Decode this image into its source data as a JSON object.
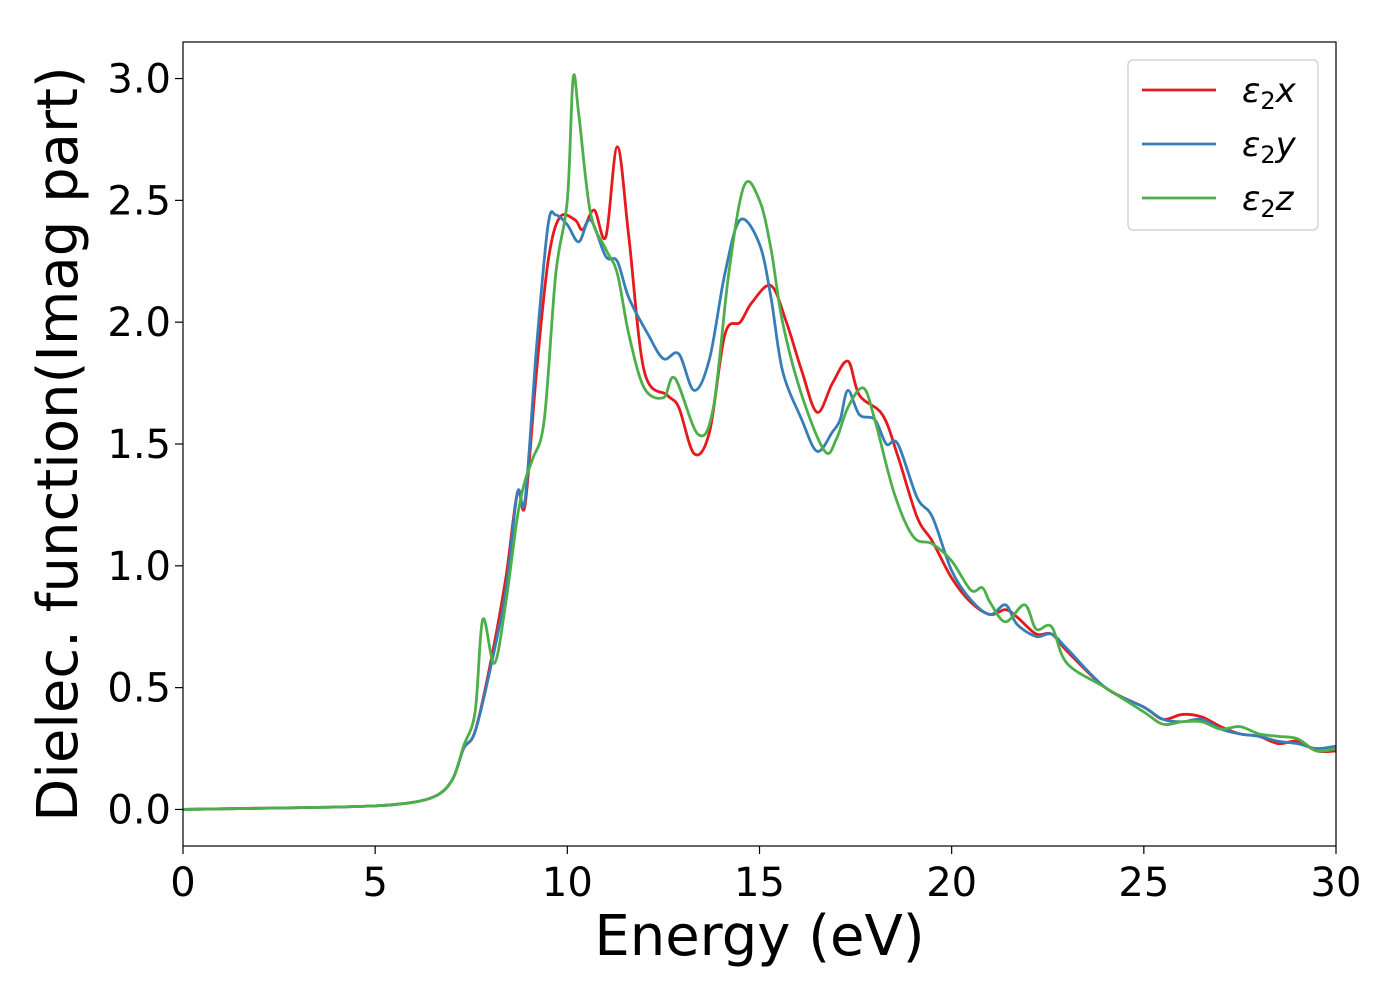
{
  "chart_data": {
    "type": "line",
    "xlabel": "Energy (eV)",
    "ylabel": "Dielec. function(Imag part)",
    "xlim": [
      0,
      30
    ],
    "ylim": [
      -0.15,
      3.15
    ],
    "xticks": [
      0,
      5,
      10,
      15,
      20,
      25,
      30
    ],
    "xtick_labels": [
      "0",
      "5",
      "10",
      "15",
      "20",
      "25",
      "30"
    ],
    "yticks": [
      0.0,
      0.5,
      1.0,
      1.5,
      2.0,
      2.5,
      3.0
    ],
    "ytick_labels": [
      "0.0",
      "0.5",
      "1.0",
      "1.5",
      "2.0",
      "2.5",
      "3.0"
    ],
    "grid": false,
    "legend_position": "top-right",
    "series": [
      {
        "name": "ε2x",
        "legend_base": "ε",
        "legend_sub": "2",
        "legend_suffix": "x",
        "color": "#e41a1c",
        "points": [
          [
            0,
            0
          ],
          [
            2,
            0.005
          ],
          [
            4,
            0.01
          ],
          [
            5.5,
            0.02
          ],
          [
            6.5,
            0.05
          ],
          [
            7,
            0.12
          ],
          [
            7.3,
            0.25
          ],
          [
            7.6,
            0.32
          ],
          [
            8,
            0.6
          ],
          [
            8.4,
            0.95
          ],
          [
            8.7,
            1.3
          ],
          [
            8.9,
            1.25
          ],
          [
            9.2,
            1.8
          ],
          [
            9.5,
            2.25
          ],
          [
            9.8,
            2.43
          ],
          [
            10.2,
            2.42
          ],
          [
            10.4,
            2.38
          ],
          [
            10.7,
            2.46
          ],
          [
            11,
            2.35
          ],
          [
            11.3,
            2.72
          ],
          [
            11.6,
            2.35
          ],
          [
            12,
            1.8
          ],
          [
            12.6,
            1.7
          ],
          [
            12.9,
            1.65
          ],
          [
            13.3,
            1.46
          ],
          [
            13.7,
            1.55
          ],
          [
            14.1,
            1.95
          ],
          [
            14.5,
            2.0
          ],
          [
            14.8,
            2.08
          ],
          [
            15.3,
            2.15
          ],
          [
            15.7,
            2.0
          ],
          [
            16.1,
            1.8
          ],
          [
            16.5,
            1.63
          ],
          [
            16.9,
            1.75
          ],
          [
            17.3,
            1.84
          ],
          [
            17.6,
            1.7
          ],
          [
            18.2,
            1.62
          ],
          [
            18.6,
            1.45
          ],
          [
            19.1,
            1.2
          ],
          [
            19.5,
            1.1
          ],
          [
            20,
            0.95
          ],
          [
            20.5,
            0.85
          ],
          [
            21,
            0.8
          ],
          [
            21.4,
            0.82
          ],
          [
            21.7,
            0.79
          ],
          [
            22.2,
            0.72
          ],
          [
            22.6,
            0.72
          ],
          [
            23,
            0.65
          ],
          [
            24,
            0.5
          ],
          [
            25,
            0.42
          ],
          [
            25.5,
            0.37
          ],
          [
            26,
            0.39
          ],
          [
            26.5,
            0.38
          ],
          [
            27,
            0.34
          ],
          [
            27.5,
            0.31
          ],
          [
            28,
            0.3
          ],
          [
            28.5,
            0.27
          ],
          [
            29,
            0.28
          ],
          [
            29.5,
            0.24
          ],
          [
            30,
            0.24
          ]
        ]
      },
      {
        "name": "ε2y",
        "legend_base": "ε",
        "legend_sub": "2",
        "legend_suffix": "y",
        "color": "#377eb8",
        "points": [
          [
            0,
            0
          ],
          [
            2,
            0.005
          ],
          [
            4,
            0.01
          ],
          [
            5.5,
            0.02
          ],
          [
            6.5,
            0.05
          ],
          [
            7,
            0.12
          ],
          [
            7.3,
            0.25
          ],
          [
            7.6,
            0.32
          ],
          [
            8,
            0.58
          ],
          [
            8.4,
            0.9
          ],
          [
            8.7,
            1.3
          ],
          [
            8.9,
            1.27
          ],
          [
            9.2,
            1.9
          ],
          [
            9.5,
            2.4
          ],
          [
            9.7,
            2.44
          ],
          [
            10,
            2.4
          ],
          [
            10.3,
            2.33
          ],
          [
            10.6,
            2.42
          ],
          [
            11,
            2.27
          ],
          [
            11.3,
            2.25
          ],
          [
            11.6,
            2.1
          ],
          [
            12.1,
            1.95
          ],
          [
            12.5,
            1.85
          ],
          [
            12.9,
            1.87
          ],
          [
            13.3,
            1.72
          ],
          [
            13.7,
            1.85
          ],
          [
            14.1,
            2.2
          ],
          [
            14.5,
            2.42
          ],
          [
            15,
            2.32
          ],
          [
            15.3,
            2.1
          ],
          [
            15.6,
            1.8
          ],
          [
            16.1,
            1.6
          ],
          [
            16.5,
            1.47
          ],
          [
            16.9,
            1.55
          ],
          [
            17.1,
            1.6
          ],
          [
            17.3,
            1.72
          ],
          [
            17.6,
            1.62
          ],
          [
            18,
            1.6
          ],
          [
            18.3,
            1.5
          ],
          [
            18.6,
            1.5
          ],
          [
            19.1,
            1.28
          ],
          [
            19.5,
            1.2
          ],
          [
            20,
            0.98
          ],
          [
            20.5,
            0.86
          ],
          [
            21,
            0.8
          ],
          [
            21.4,
            0.84
          ],
          [
            21.7,
            0.76
          ],
          [
            22.2,
            0.71
          ],
          [
            22.6,
            0.72
          ],
          [
            23,
            0.66
          ],
          [
            24,
            0.5
          ],
          [
            25,
            0.42
          ],
          [
            25.5,
            0.37
          ],
          [
            26,
            0.36
          ],
          [
            26.5,
            0.37
          ],
          [
            27,
            0.33
          ],
          [
            27.5,
            0.31
          ],
          [
            28,
            0.3
          ],
          [
            28.5,
            0.28
          ],
          [
            29,
            0.27
          ],
          [
            29.5,
            0.25
          ],
          [
            30,
            0.26
          ]
        ]
      },
      {
        "name": "ε2z",
        "legend_base": "ε",
        "legend_sub": "2",
        "legend_suffix": "z",
        "color": "#4daf4a",
        "points": [
          [
            0,
            0
          ],
          [
            2,
            0.005
          ],
          [
            4,
            0.01
          ],
          [
            5.5,
            0.02
          ],
          [
            6.5,
            0.05
          ],
          [
            7,
            0.12
          ],
          [
            7.3,
            0.26
          ],
          [
            7.6,
            0.4
          ],
          [
            7.8,
            0.78
          ],
          [
            8.1,
            0.6
          ],
          [
            8.4,
            0.85
          ],
          [
            8.7,
            1.2
          ],
          [
            8.9,
            1.35
          ],
          [
            9.1,
            1.44
          ],
          [
            9.4,
            1.6
          ],
          [
            9.7,
            2.2
          ],
          [
            10,
            2.5
          ],
          [
            10.15,
            3.0
          ],
          [
            10.3,
            2.85
          ],
          [
            10.6,
            2.45
          ],
          [
            11,
            2.3
          ],
          [
            11.3,
            2.2
          ],
          [
            11.6,
            1.95
          ],
          [
            12,
            1.73
          ],
          [
            12.5,
            1.69
          ],
          [
            12.8,
            1.77
          ],
          [
            13.4,
            1.54
          ],
          [
            13.8,
            1.65
          ],
          [
            14.2,
            2.2
          ],
          [
            14.6,
            2.56
          ],
          [
            15,
            2.5
          ],
          [
            15.3,
            2.3
          ],
          [
            15.6,
            2.0
          ],
          [
            16.1,
            1.7
          ],
          [
            16.7,
            1.47
          ],
          [
            17,
            1.52
          ],
          [
            17.3,
            1.65
          ],
          [
            17.7,
            1.73
          ],
          [
            18,
            1.6
          ],
          [
            18.5,
            1.3
          ],
          [
            19,
            1.12
          ],
          [
            19.5,
            1.09
          ],
          [
            20,
            1.02
          ],
          [
            20.5,
            0.9
          ],
          [
            20.8,
            0.91
          ],
          [
            21,
            0.85
          ],
          [
            21.4,
            0.77
          ],
          [
            21.9,
            0.84
          ],
          [
            22.2,
            0.74
          ],
          [
            22.6,
            0.75
          ],
          [
            23,
            0.6
          ],
          [
            24,
            0.5
          ],
          [
            25,
            0.4
          ],
          [
            25.5,
            0.35
          ],
          [
            26,
            0.36
          ],
          [
            26.5,
            0.36
          ],
          [
            27,
            0.33
          ],
          [
            27.5,
            0.34
          ],
          [
            28,
            0.31
          ],
          [
            28.5,
            0.3
          ],
          [
            29,
            0.29
          ],
          [
            29.5,
            0.24
          ],
          [
            30,
            0.25
          ]
        ]
      }
    ]
  }
}
